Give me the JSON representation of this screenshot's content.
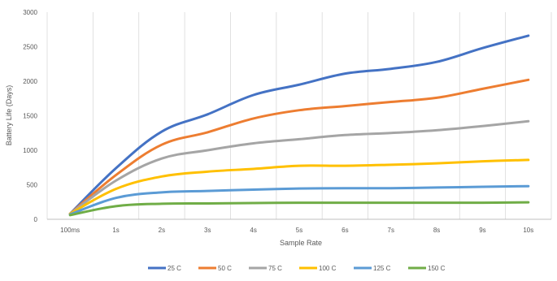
{
  "chart_data": {
    "type": "line",
    "title": "",
    "xlabel": "Sample Rate",
    "ylabel": "Battery Life (Days)",
    "categories": [
      "100ms",
      "1s",
      "2s",
      "3s",
      "4s",
      "5s",
      "6s",
      "7s",
      "8s",
      "9s",
      "10s"
    ],
    "ylim": [
      0,
      3000
    ],
    "yticks": [
      0,
      500,
      1000,
      1500,
      2000,
      2500,
      3000
    ],
    "grid": "vertical category gridlines",
    "legend_position": "bottom",
    "series": [
      {
        "name": "25 C",
        "color": "#4472C4",
        "values": [
          80,
          740,
          1270,
          1520,
          1800,
          1950,
          2110,
          2180,
          2280,
          2480,
          2660
        ]
      },
      {
        "name": "50 C",
        "color": "#ED7D31",
        "values": [
          80,
          640,
          1080,
          1260,
          1460,
          1580,
          1640,
          1700,
          1760,
          1890,
          2020
        ]
      },
      {
        "name": "75 C",
        "color": "#A5A5A5",
        "values": [
          80,
          560,
          880,
          1000,
          1100,
          1160,
          1220,
          1250,
          1290,
          1350,
          1420
        ]
      },
      {
        "name": "100 C",
        "color": "#FFC000",
        "values": [
          80,
          440,
          620,
          690,
          730,
          775,
          775,
          790,
          810,
          840,
          860
        ]
      },
      {
        "name": "125 C",
        "color": "#5B9BD5",
        "values": [
          70,
          310,
          390,
          410,
          430,
          445,
          450,
          450,
          460,
          470,
          480
        ]
      },
      {
        "name": "150 C",
        "color": "#70AD47",
        "values": [
          60,
          190,
          225,
          230,
          235,
          240,
          240,
          240,
          240,
          240,
          245
        ]
      }
    ]
  }
}
